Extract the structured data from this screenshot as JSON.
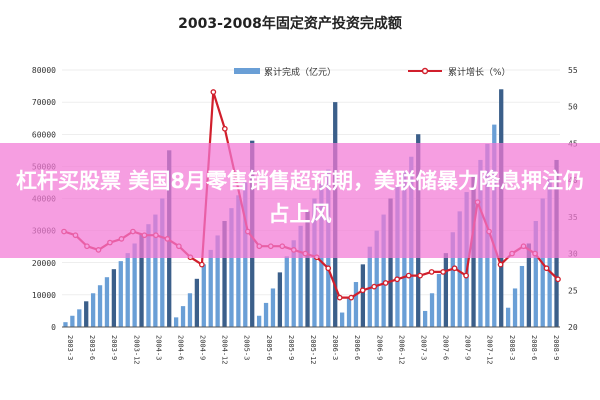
{
  "banner": {
    "text": "杠杆买股票 美国8月零售销售超预期，美联储暴力降息押注仍占上风"
  },
  "colors": {
    "bar": "#6a9fd6",
    "bar_dark": "#3b5f8a",
    "line": "#d11f2c",
    "grid": "#dddddd",
    "axis": "#555555",
    "banner": "#f378d6"
  },
  "chart_data": {
    "type": "bar",
    "title": "2003-2008年固定资产投资完成额",
    "legend": [
      "累计完成（亿元）",
      "累计增长（%）"
    ],
    "legend_position": "top",
    "x_tick_labels": [
      "2003-3",
      "2003-6",
      "2003-9",
      "2003-12",
      "2004-3",
      "2004-6",
      "2004-9",
      "2004-12",
      "2005-3",
      "2005-6",
      "2005-9",
      "2005-12",
      "2006-3",
      "2006-6",
      "2006-9",
      "2006-12",
      "2007-3",
      "2007-6",
      "2007-9",
      "2007-12",
      "2008-3",
      "2008-6",
      "2008-9"
    ],
    "ylim_left": [
      0,
      80000
    ],
    "y_ticks_left": [
      0,
      10000,
      20000,
      30000,
      40000,
      50000,
      60000,
      70000,
      80000
    ],
    "ylim_right": [
      20,
      55
    ],
    "y_ticks_right": [
      20,
      25,
      30,
      35,
      40,
      45,
      50,
      55
    ],
    "series": [
      {
        "name": "累计完成（亿元）",
        "axis": "left",
        "kind": "bar",
        "values": [
          1500,
          3500,
          5500,
          8000,
          10500,
          13000,
          15500,
          18000,
          20500,
          23000,
          26000,
          29000,
          32000,
          35000,
          40000,
          55000,
          3000,
          6500,
          10500,
          15000,
          19500,
          24000,
          28500,
          33000,
          37000,
          41000,
          45000,
          58000,
          3500,
          7500,
          12000,
          17000,
          22000,
          27000,
          31500,
          36000,
          40000,
          44500,
          49000,
          70000,
          4500,
          9000,
          14000,
          19500,
          25000,
          30000,
          35000,
          40000,
          44000,
          48500,
          53000,
          60000,
          5000,
          10500,
          16500,
          23000,
          29500,
          36000,
          42000,
          47500,
          52000,
          57000,
          63000,
          74000,
          6000,
          12000,
          19000,
          26000,
          33000,
          40000,
          46000,
          52000
        ]
      },
      {
        "name": "累计增长（%）",
        "axis": "right",
        "kind": "line",
        "values": [
          33,
          32.5,
          31,
          30.5,
          31.5,
          32,
          33,
          32.5,
          32.5,
          32,
          31,
          29.5,
          28.5,
          52,
          47,
          40,
          33,
          31,
          31,
          31,
          30.5,
          30,
          29.5,
          28,
          24,
          24,
          25,
          25.5,
          26,
          26.5,
          27,
          27,
          27.5,
          27.5,
          28,
          27,
          37,
          33,
          28.5,
          30,
          31,
          30,
          28,
          26.5
        ]
      }
    ]
  }
}
